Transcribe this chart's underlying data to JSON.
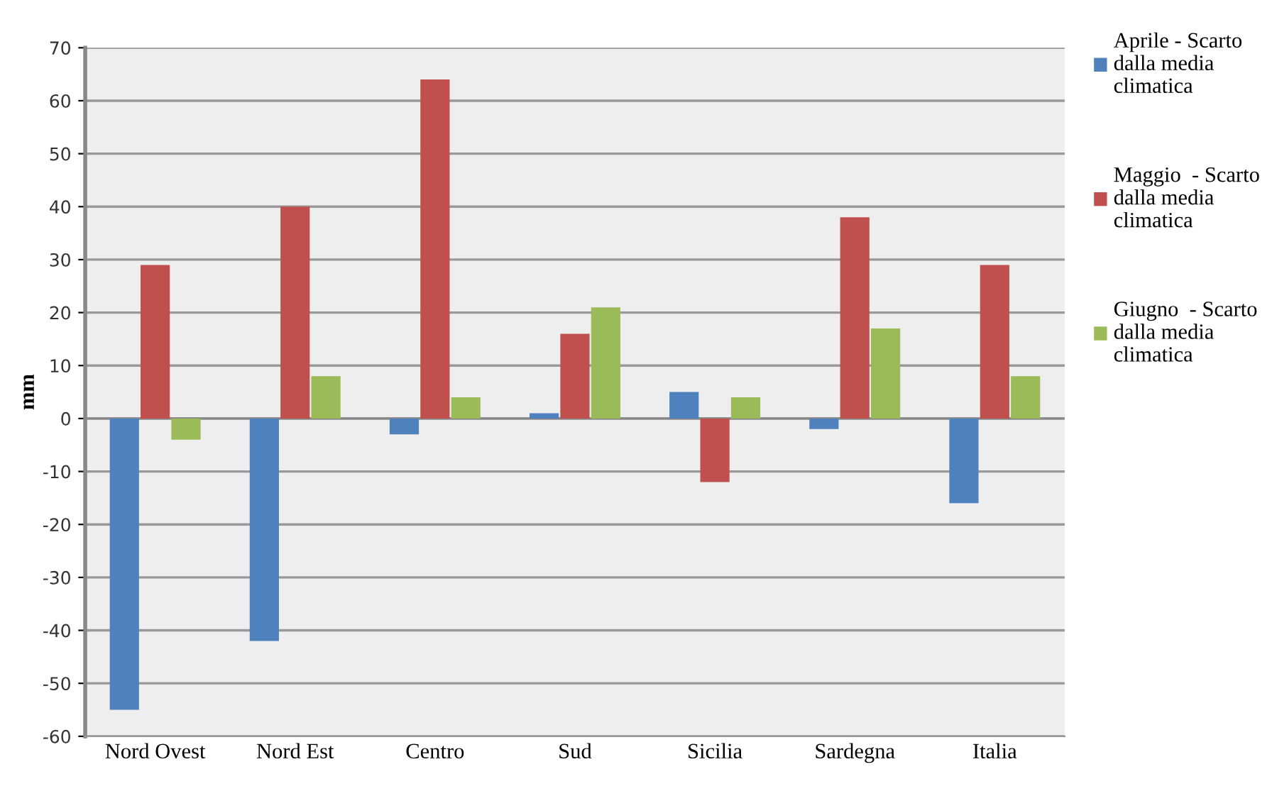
{
  "chart_data": {
    "type": "bar",
    "ylabel": "mm",
    "categories": [
      "Nord Ovest",
      "Nord Est",
      "Centro",
      "Sud",
      "Sicilia",
      "Sardegna",
      "Italia"
    ],
    "series": [
      {
        "name": "Aprile - Scarto dalla media climatica",
        "color": "#4f81bd",
        "values": [
          -55,
          -42,
          -3,
          1,
          5,
          -2,
          -16
        ]
      },
      {
        "name": "Maggio  - Scarto dalla media climatica",
        "color": "#c0504d",
        "values": [
          29,
          40,
          64,
          16,
          -12,
          38,
          29
        ]
      },
      {
        "name": "Giugno  - Scarto dalla media climatica",
        "color": "#9bbb59",
        "values": [
          -4,
          8,
          4,
          21,
          4,
          17,
          8
        ]
      }
    ],
    "ylim": [
      -60,
      70
    ],
    "yticks": [
      -60,
      -50,
      -40,
      -30,
      -20,
      -10,
      0,
      10,
      20,
      30,
      40,
      50,
      60,
      70
    ],
    "grid": "y",
    "legend": "right"
  }
}
